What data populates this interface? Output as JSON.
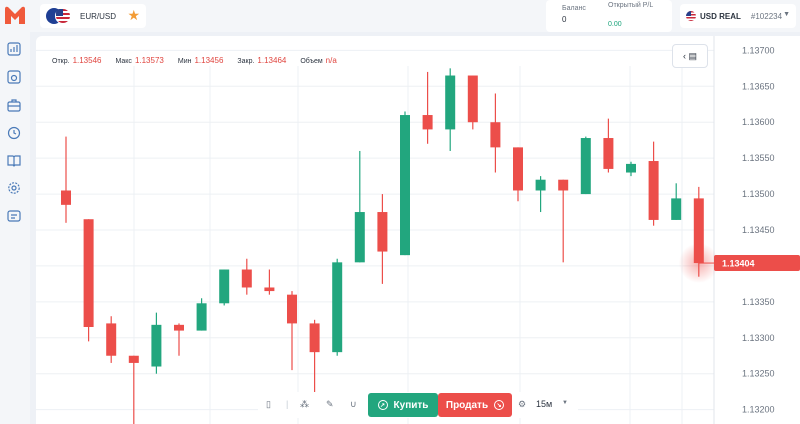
{
  "app": {
    "logo_name": "M"
  },
  "pair": {
    "name": "EUR/USD"
  },
  "account": {
    "balance_label": "Баланс",
    "balance_value": "0",
    "pl_label": "Открытый P/L",
    "pl_value": "0.00",
    "type": "USD REAL",
    "number": "#102234"
  },
  "ohlc": {
    "open_label": "Откр.",
    "open": "1.13546",
    "high_label": "Макс",
    "high": "1.13573",
    "low_label": "Мин",
    "low": "1.13456",
    "close_label": "Закр.",
    "close": "1.13464",
    "volume_label": "Объем",
    "volume": "n/a"
  },
  "chart_data": {
    "type": "candlestick",
    "y_ticks": [
      "1.13700",
      "1.13650",
      "1.13600",
      "1.13550",
      "1.13500",
      "1.13450",
      "1.13400",
      "1.13350",
      "1.13300",
      "1.13250",
      "1.13200"
    ],
    "ylim": [
      1.1318,
      1.1372
    ],
    "current_price": "1.13404",
    "colors": {
      "up": "#22a67e",
      "down": "#ec4e4a",
      "grid": "#edf0f4"
    },
    "candles": [
      {
        "o": 1.13505,
        "h": 1.1358,
        "l": 1.1346,
        "c": 1.13485
      },
      {
        "o": 1.13465,
        "h": 1.13465,
        "l": 1.13295,
        "c": 1.13315
      },
      {
        "o": 1.1332,
        "h": 1.1333,
        "l": 1.13265,
        "c": 1.13275
      },
      {
        "o": 1.13275,
        "h": 1.13275,
        "l": 1.1316,
        "c": 1.13265
      },
      {
        "o": 1.1326,
        "h": 1.13335,
        "l": 1.1325,
        "c": 1.13318
      },
      {
        "o": 1.13318,
        "h": 1.1332,
        "l": 1.13275,
        "c": 1.1331
      },
      {
        "o": 1.1331,
        "h": 1.13355,
        "l": 1.1331,
        "c": 1.13348
      },
      {
        "o": 1.13348,
        "h": 1.13395,
        "l": 1.13345,
        "c": 1.13395
      },
      {
        "o": 1.13395,
        "h": 1.1341,
        "l": 1.1336,
        "c": 1.1337
      },
      {
        "o": 1.1337,
        "h": 1.13395,
        "l": 1.1336,
        "c": 1.13365
      },
      {
        "o": 1.1336,
        "h": 1.13365,
        "l": 1.13255,
        "c": 1.1332
      },
      {
        "o": 1.1332,
        "h": 1.13325,
        "l": 1.1322,
        "c": 1.1328
      },
      {
        "o": 1.1328,
        "h": 1.1341,
        "l": 1.13275,
        "c": 1.13405
      },
      {
        "o": 1.13405,
        "h": 1.1356,
        "l": 1.13405,
        "c": 1.13475
      },
      {
        "o": 1.13475,
        "h": 1.135,
        "l": 1.13375,
        "c": 1.1342
      },
      {
        "o": 1.13415,
        "h": 1.13615,
        "l": 1.13415,
        "c": 1.1361
      },
      {
        "o": 1.1361,
        "h": 1.1367,
        "l": 1.1357,
        "c": 1.1359
      },
      {
        "o": 1.1359,
        "h": 1.13675,
        "l": 1.1356,
        "c": 1.13665
      },
      {
        "o": 1.13665,
        "h": 1.13665,
        "l": 1.1359,
        "c": 1.136
      },
      {
        "o": 1.136,
        "h": 1.1364,
        "l": 1.1353,
        "c": 1.13565
      },
      {
        "o": 1.13565,
        "h": 1.13565,
        "l": 1.1349,
        "c": 1.13505
      },
      {
        "o": 1.13505,
        "h": 1.13525,
        "l": 1.13475,
        "c": 1.1352
      },
      {
        "o": 1.1352,
        "h": 1.1352,
        "l": 1.13405,
        "c": 1.13505
      },
      {
        "o": 1.135,
        "h": 1.1358,
        "l": 1.135,
        "c": 1.13578
      },
      {
        "o": 1.13578,
        "h": 1.13605,
        "l": 1.1353,
        "c": 1.13535
      },
      {
        "o": 1.1353,
        "h": 1.13545,
        "l": 1.13525,
        "c": 1.13542
      },
      {
        "o": 1.13546,
        "h": 1.13573,
        "l": 1.13456,
        "c": 1.13464
      },
      {
        "o": 1.13464,
        "h": 1.13515,
        "l": 1.13464,
        "c": 1.13494
      },
      {
        "o": 1.13494,
        "h": 1.1351,
        "l": 1.13385,
        "c": 1.13404
      }
    ]
  },
  "trade": {
    "buy_label": "Купить",
    "sell_label": "Продать",
    "timeframe": "15м"
  }
}
